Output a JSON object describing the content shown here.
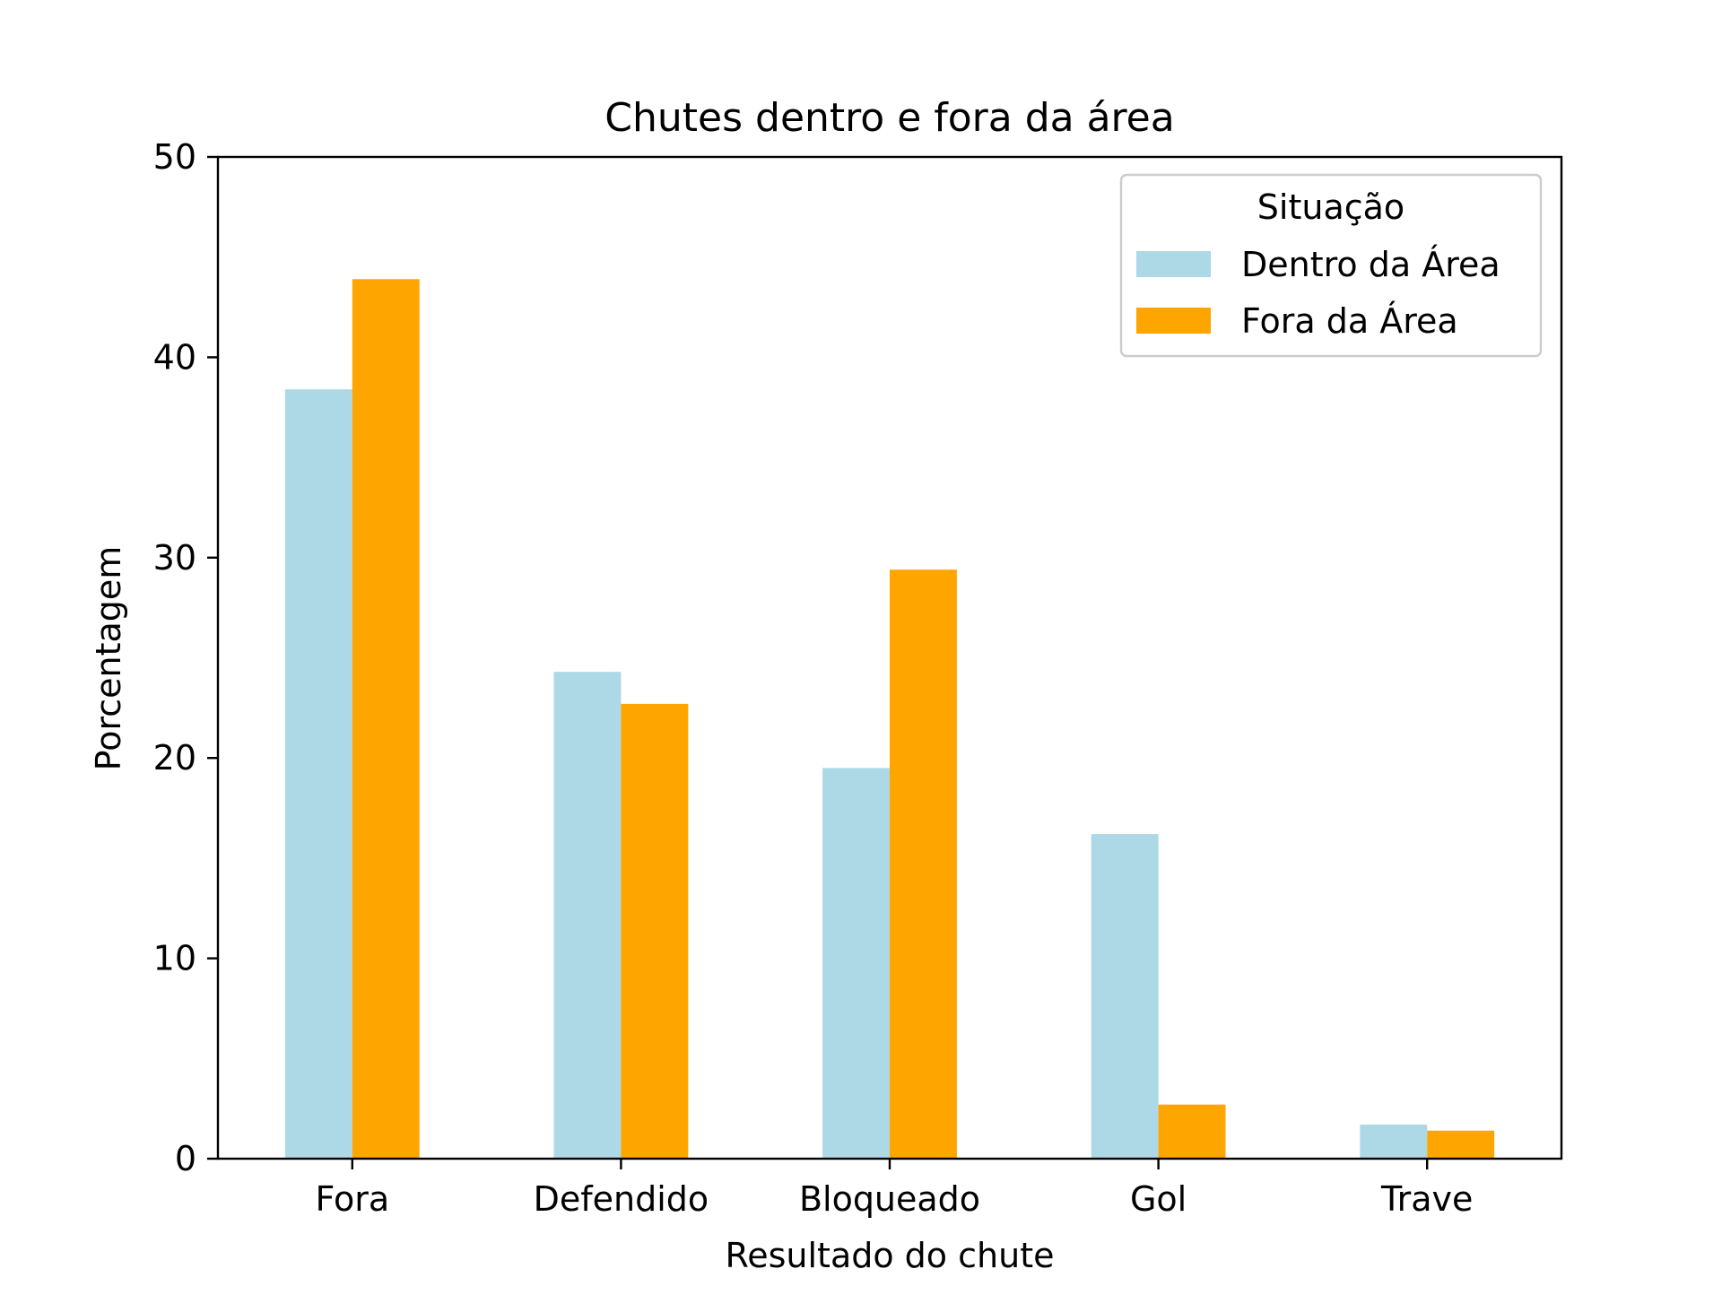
{
  "chart_data": {
    "type": "bar",
    "title": "Chutes dentro e fora da área",
    "xlabel": "Resultado do chute",
    "ylabel": "Porcentagem",
    "categories": [
      "Fora",
      "Defendido",
      "Bloqueado",
      "Gol",
      "Trave"
    ],
    "ylim": [
      0,
      50
    ],
    "yticks": [
      "0",
      "10",
      "20",
      "30",
      "40",
      "50"
    ],
    "grid": false,
    "legend": {
      "title": "Situação",
      "placement": "top-right"
    },
    "series": [
      {
        "name": "Dentro da Área",
        "color": "#add8e6",
        "values": [
          38.4,
          24.3,
          19.5,
          16.2,
          1.7
        ]
      },
      {
        "name": "Fora da Área",
        "color": "#ffa500",
        "values": [
          43.9,
          22.7,
          29.4,
          2.7,
          1.4
        ]
      }
    ]
  }
}
